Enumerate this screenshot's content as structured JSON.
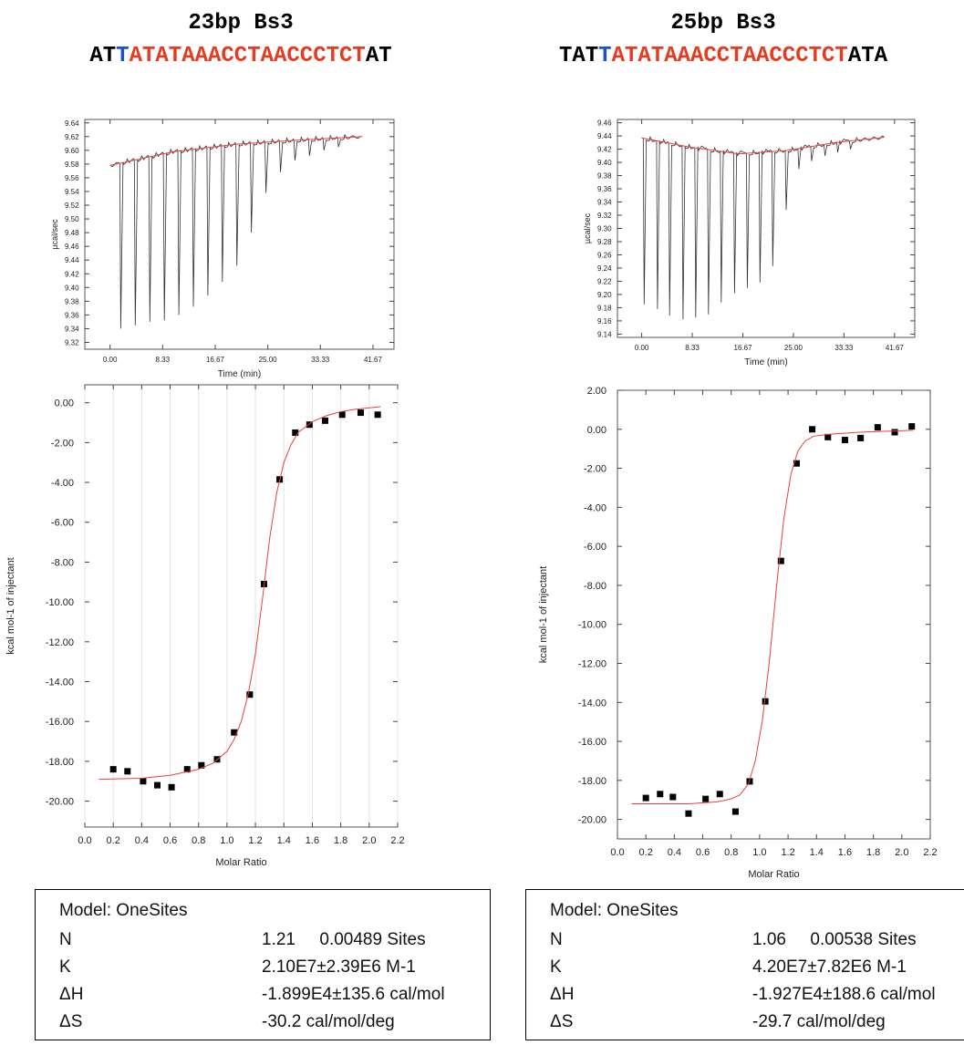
{
  "panels": [
    {
      "id": "left",
      "title": "23bp Bs3",
      "sequence": {
        "prefix": "AT",
        "blue": "T",
        "red": "ATATAAACCTAACCCTCT",
        "suffix": "AT",
        "colors": {
          "prefix": "#000000",
          "blue": "#1a4fd6",
          "red": "#e83a1f",
          "suffix": "#000000"
        }
      },
      "params": {
        "model": "Model: OneSites",
        "rows": [
          {
            "name": "N",
            "value": "1.21     0.00489 Sites"
          },
          {
            "name": "K",
            "value": "2.10E7±2.39E6 M-1"
          },
          {
            "name": "ΔH",
            "value": "-1.899E4±135.6 cal/mol"
          },
          {
            "name": "ΔS",
            "value": "-30.2 cal/mol/deg"
          }
        ]
      }
    },
    {
      "id": "right",
      "title": "25bp Bs3",
      "sequence": {
        "prefix": "TAT",
        "blue": "T",
        "red": "ATATAAACCTAACCCTCT",
        "suffix": "ATA",
        "colors": {
          "prefix": "#000000",
          "blue": "#1a4fd6",
          "red": "#e83a1f",
          "suffix": "#000000"
        }
      },
      "params": {
        "model": "Model: OneSites",
        "rows": [
          {
            "name": "N",
            "value": "1.06     0.00538 Sites"
          },
          {
            "name": "K",
            "value": "4.20E7±7.82E6 M-1"
          },
          {
            "name": "ΔH",
            "value": "-1.927E4±188.6 cal/mol"
          },
          {
            "name": "ΔS",
            "value": "-29.7 cal/mol/deg"
          }
        ]
      }
    }
  ],
  "chart_data": [
    {
      "panel": "left",
      "type": "line",
      "title": "",
      "xlabel": "Time (min)",
      "ylabel": "µcal/sec",
      "xlim": [
        -4.0,
        45.0
      ],
      "ylim": [
        9.31,
        9.645
      ],
      "xticks": [
        "0.00",
        "8.33",
        "16.67",
        "25.00",
        "33.33",
        "41.67"
      ],
      "yticks": [
        "9.64",
        "9.62",
        "9.60",
        "9.58",
        "9.56",
        "9.54",
        "9.52",
        "9.50",
        "9.48",
        "9.46",
        "9.44",
        "9.42",
        "9.40",
        "9.38",
        "9.36",
        "9.34",
        "9.32"
      ],
      "grid": false,
      "series": [
        {
          "role": "raw",
          "color": "#333333",
          "baseline": [
            [
              0.0,
              9.578
            ],
            [
              10.0,
              9.598
            ],
            [
              20.0,
              9.609
            ],
            [
              30.0,
              9.615
            ],
            [
              40.0,
              9.62
            ]
          ],
          "peaks": [
            {
              "t": 1.7,
              "min": 9.34
            },
            {
              "t": 4.0,
              "min": 9.345
            },
            {
              "t": 6.3,
              "min": 9.35
            },
            {
              "t": 8.6,
              "min": 9.352
            },
            {
              "t": 10.9,
              "min": 9.36
            },
            {
              "t": 13.2,
              "min": 9.372
            },
            {
              "t": 15.5,
              "min": 9.388
            },
            {
              "t": 17.8,
              "min": 9.408
            },
            {
              "t": 20.1,
              "min": 9.432
            },
            {
              "t": 22.4,
              "min": 9.48
            },
            {
              "t": 24.7,
              "min": 9.538
            },
            {
              "t": 27.0,
              "min": 9.568
            },
            {
              "t": 29.3,
              "min": 9.585
            },
            {
              "t": 31.6,
              "min": 9.592
            },
            {
              "t": 33.9,
              "min": 9.6
            },
            {
              "t": 36.2,
              "min": 9.605
            }
          ]
        },
        {
          "role": "baseline",
          "color": "#e8413a",
          "points": [
            [
              0.0,
              9.578
            ],
            [
              10.0,
              9.598
            ],
            [
              20.0,
              9.609
            ],
            [
              30.0,
              9.615
            ],
            [
              40.0,
              9.62
            ]
          ]
        }
      ]
    },
    {
      "panel": "left",
      "type": "scatter",
      "title": "",
      "xlabel": "Molar Ratio",
      "ylabel": "kcal mol-1 of injectant",
      "xlim": [
        0.0,
        2.2
      ],
      "ylim": [
        -21.3,
        0.9
      ],
      "xticks": [
        "0.0",
        "0.2",
        "0.4",
        "0.6",
        "0.8",
        "1.0",
        "1.2",
        "1.4",
        "1.6",
        "1.8",
        "2.0",
        "2.2"
      ],
      "yticks": [
        "0.00",
        "-2.00",
        "-4.00",
        "-6.00",
        "-8.00",
        "-10.00",
        "-12.00",
        "-14.00",
        "-16.00",
        "-18.00",
        "-20.00"
      ],
      "grid": true,
      "series": [
        {
          "role": "data",
          "color": "#000000",
          "x": [
            0.2,
            0.3,
            0.41,
            0.51,
            0.61,
            0.72,
            0.82,
            0.93,
            1.05,
            1.16,
            1.26,
            1.37,
            1.48,
            1.58,
            1.69,
            1.81,
            1.94,
            2.06
          ],
          "y": [
            -18.4,
            -18.5,
            -19.0,
            -19.2,
            -19.3,
            -18.4,
            -18.2,
            -17.9,
            -16.55,
            -14.65,
            -9.1,
            -3.85,
            -1.5,
            -1.1,
            -0.9,
            -0.6,
            -0.5,
            -0.6
          ]
        },
        {
          "role": "fit",
          "color": "#e8413a",
          "x": [
            0.1,
            0.4,
            0.6,
            0.8,
            0.9,
            1.0,
            1.05,
            1.1,
            1.15,
            1.2,
            1.25,
            1.3,
            1.35,
            1.4,
            1.45,
            1.5,
            1.6,
            1.7,
            1.8,
            1.9,
            2.08
          ],
          "y": [
            -18.9,
            -18.85,
            -18.7,
            -18.4,
            -18.1,
            -17.5,
            -16.9,
            -16.0,
            -14.6,
            -12.6,
            -9.8,
            -6.8,
            -4.5,
            -3.0,
            -2.1,
            -1.5,
            -0.95,
            -0.65,
            -0.45,
            -0.33,
            -0.2
          ]
        }
      ]
    },
    {
      "panel": "right",
      "type": "line",
      "title": "",
      "xlabel": "Time (min)",
      "ylabel": "µcal/sec",
      "xlim": [
        -4.0,
        45.0
      ],
      "ylim": [
        9.135,
        9.465
      ],
      "xticks": [
        "0.00",
        "8.33",
        "16.67",
        "25.00",
        "33.33",
        "41.67"
      ],
      "yticks": [
        "9.46",
        "9.44",
        "9.42",
        "9.40",
        "9.38",
        "9.36",
        "9.34",
        "9.32",
        "9.30",
        "9.28",
        "9.26",
        "9.24",
        "9.22",
        "9.20",
        "9.18",
        "9.16",
        "9.14"
      ],
      "grid": false,
      "series": [
        {
          "role": "raw",
          "color": "#333333",
          "baseline": [
            [
              0.0,
              9.437
            ],
            [
              8.0,
              9.423
            ],
            [
              16.0,
              9.413
            ],
            [
              24.0,
              9.418
            ],
            [
              32.0,
              9.43
            ],
            [
              40.0,
              9.438
            ]
          ],
          "peaks": [
            {
              "t": 0.4,
              "min": 9.185
            },
            {
              "t": 2.6,
              "min": 9.178
            },
            {
              "t": 4.6,
              "min": 9.168
            },
            {
              "t": 6.8,
              "min": 9.162
            },
            {
              "t": 8.9,
              "min": 9.165
            },
            {
              "t": 11.0,
              "min": 9.17
            },
            {
              "t": 13.1,
              "min": 9.188
            },
            {
              "t": 15.3,
              "min": 9.202
            },
            {
              "t": 17.4,
              "min": 9.21
            },
            {
              "t": 19.5,
              "min": 9.218
            },
            {
              "t": 21.6,
              "min": 9.243
            },
            {
              "t": 23.8,
              "min": 9.328
            },
            {
              "t": 25.9,
              "min": 9.39
            },
            {
              "t": 28.0,
              "min": 9.402
            },
            {
              "t": 30.2,
              "min": 9.41
            },
            {
              "t": 32.3,
              "min": 9.415
            },
            {
              "t": 34.4,
              "min": 9.42
            }
          ]
        },
        {
          "role": "baseline",
          "color": "#e8413a",
          "points": [
            [
              0.0,
              9.437
            ],
            [
              8.0,
              9.423
            ],
            [
              16.0,
              9.413
            ],
            [
              24.0,
              9.418
            ],
            [
              32.0,
              9.43
            ],
            [
              40.0,
              9.438
            ]
          ]
        }
      ]
    },
    {
      "panel": "right",
      "type": "scatter",
      "title": "",
      "xlabel": "Molar Ratio",
      "ylabel": "kcal mol-1 of injectant",
      "xlim": [
        0.0,
        2.2
      ],
      "ylim": [
        -21.0,
        2.0
      ],
      "xticks": [
        "0.0",
        "0.2",
        "0.4",
        "0.6",
        "0.8",
        "1.0",
        "1.2",
        "1.4",
        "1.6",
        "1.8",
        "2.0",
        "2.2"
      ],
      "yticks": [
        "2.00",
        "0.00",
        "-2.00",
        "-4.00",
        "-6.00",
        "-8.00",
        "-10.00",
        "-12.00",
        "-14.00",
        "-16.00",
        "-18.00",
        "-20.00"
      ],
      "grid": false,
      "series": [
        {
          "role": "data",
          "color": "#000000",
          "x": [
            0.2,
            0.3,
            0.39,
            0.5,
            0.62,
            0.72,
            0.83,
            0.93,
            1.04,
            1.15,
            1.26,
            1.37,
            1.48,
            1.6,
            1.71,
            1.83,
            1.95,
            2.07
          ],
          "y": [
            -18.9,
            -18.7,
            -18.85,
            -19.7,
            -18.95,
            -18.7,
            -19.6,
            -18.05,
            -13.95,
            -6.75,
            -1.75,
            0.0,
            -0.4,
            -0.55,
            -0.45,
            0.1,
            -0.15,
            0.15
          ]
        },
        {
          "role": "fit",
          "color": "#e8413a",
          "x": [
            0.1,
            0.5,
            0.7,
            0.8,
            0.86,
            0.92,
            0.97,
            1.02,
            1.07,
            1.12,
            1.17,
            1.22,
            1.27,
            1.32,
            1.38,
            1.5,
            1.7,
            1.9,
            2.08
          ],
          "y": [
            -19.2,
            -19.2,
            -19.1,
            -18.95,
            -18.75,
            -18.2,
            -17.0,
            -14.9,
            -11.8,
            -8.0,
            -4.6,
            -2.3,
            -1.1,
            -0.6,
            -0.35,
            -0.25,
            -0.15,
            -0.1,
            -0.05
          ]
        }
      ]
    }
  ]
}
